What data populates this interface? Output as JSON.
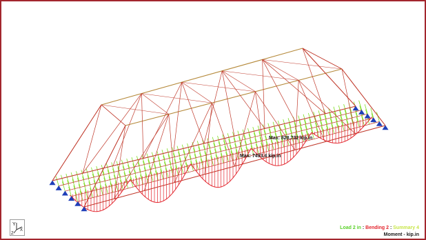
{
  "viewport": {
    "callouts": {
      "top": "Max: 828.732 kip.in",
      "middle": "Max: 7493.4 kip.in"
    },
    "legend": {
      "load": "Load 2 in",
      "separator": ":",
      "bending": "Bending 2",
      "summary": "Summary 4",
      "units": "Moment - kip.in"
    },
    "axes": {
      "y_label": "Y",
      "x_label": "X",
      "z_label": "Z"
    }
  },
  "colors": {
    "frame_border": "#a3262e",
    "truss_members": "#c0392b",
    "truss_top_chord": "#b5893a",
    "load_arrows": "#7ddc1f",
    "moment_diagram": "#e3262e",
    "supports": "#1f3fb8",
    "legend_load": "#5bd12a",
    "legend_bending": "#e3262e",
    "legend_summary": "#c8e64a"
  },
  "icons": [
    "support-icon",
    "axis-triad-icon",
    "load-arrow-icon"
  ]
}
